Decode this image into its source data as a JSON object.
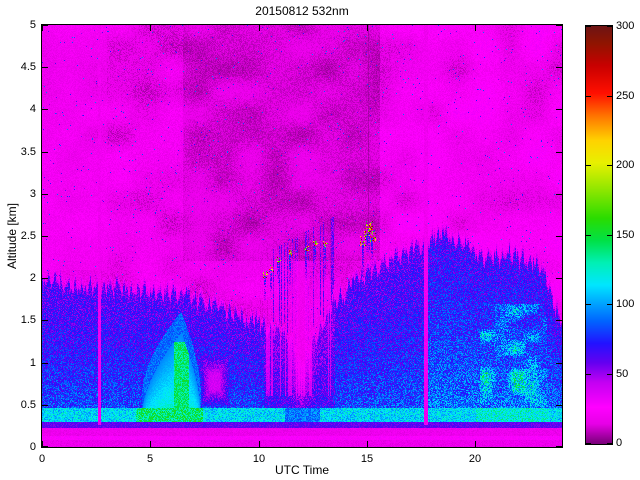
{
  "figure": {
    "title": "20150812 532nm",
    "x_axis_label": "UTC Time",
    "y_axis_label": "Altitude [km]",
    "background_color": "#FFFFFF",
    "axis_color": "#000000"
  },
  "chart_data": {
    "type": "heatmap",
    "title": "20150812 532nm",
    "xlabel": "UTC Time",
    "ylabel": "Altitude [km]",
    "x_range": [
      0,
      24
    ],
    "y_range": [
      0,
      5
    ],
    "x_ticks": [
      0,
      5,
      10,
      15,
      20
    ],
    "x_tick_labels": [
      "0",
      "5",
      "10",
      "15",
      "20"
    ],
    "y_ticks": [
      0,
      0.5,
      1,
      1.5,
      2,
      2.5,
      3,
      3.5,
      4,
      4.5,
      5
    ],
    "y_tick_labels": [
      "0",
      "0.5",
      "1",
      "1.5",
      "2",
      "2.5",
      "3",
      "3.5",
      "4",
      "4.5",
      "5"
    ],
    "grid": false,
    "colorbar": {
      "range": [
        0,
        300
      ],
      "ticks": [
        0,
        50,
        100,
        150,
        200,
        250,
        300
      ],
      "tick_labels": [
        "0",
        "50",
        "100",
        "150",
        "200",
        "250",
        "300"
      ],
      "colormap_stops": [
        [
          0,
          "#7A007A"
        ],
        [
          14,
          "#E600E6"
        ],
        [
          26,
          "#FF00FF"
        ],
        [
          44,
          "#C300F2"
        ],
        [
          58,
          "#6400F0"
        ],
        [
          72,
          "#2212FF"
        ],
        [
          88,
          "#0064FF"
        ],
        [
          102,
          "#00AAFF"
        ],
        [
          114,
          "#00E6FF"
        ],
        [
          130,
          "#00F0B4"
        ],
        [
          146,
          "#00E146"
        ],
        [
          162,
          "#2ADC00"
        ],
        [
          182,
          "#8CE600"
        ],
        [
          202,
          "#E8F000"
        ],
        [
          218,
          "#FFD200"
        ],
        [
          235,
          "#FF7800"
        ],
        [
          252,
          "#FF0F00"
        ],
        [
          272,
          "#C80000"
        ],
        [
          288,
          "#8F1400"
        ],
        [
          300,
          "#6E1414"
        ]
      ]
    },
    "features": {
      "data_gap_times_utc": [
        2.65,
        17.7
      ],
      "boundary_layer_top_km": [
        [
          0,
          2.05
        ],
        [
          2,
          2.0
        ],
        [
          4,
          1.95
        ],
        [
          6,
          1.9
        ],
        [
          7.5,
          1.8
        ],
        [
          9,
          1.65
        ],
        [
          10,
          1.55
        ],
        [
          10.8,
          1.45
        ],
        [
          11.5,
          1.3
        ],
        [
          12,
          1.1
        ],
        [
          12.8,
          1.45
        ],
        [
          13.5,
          1.8
        ],
        [
          14.5,
          2.05
        ],
        [
          15.5,
          2.2
        ],
        [
          16.5,
          2.35
        ],
        [
          17.5,
          2.45
        ],
        [
          18.5,
          2.6
        ],
        [
          19.5,
          2.45
        ],
        [
          20.5,
          2.3
        ],
        [
          21.5,
          2.35
        ],
        [
          22.5,
          2.3
        ],
        [
          23.2,
          2.1
        ],
        [
          23.6,
          1.8
        ],
        [
          24,
          1.5
        ]
      ],
      "surface_layer_km": [
        0.3,
        0.45
      ],
      "near_ground_band_km": [
        0,
        0.28
      ],
      "plume": {
        "time_utc": [
          4.6,
          7.3
        ],
        "peak_utc": 6.4,
        "top_km": 1.35
      },
      "purple_void": {
        "time_utc": [
          7.2,
          8.7
        ],
        "alt_km": [
          0.45,
          1.1
        ]
      },
      "attenuation_column": {
        "time_utc": [
          11.3,
          12.6
        ],
        "alt_km": [
          0.4,
          2.2
        ]
      },
      "dark_column_utc": 15.05,
      "cloud_specks": [
        [
          10.3,
          2.05
        ],
        [
          10.55,
          2.12
        ],
        [
          10.9,
          2.22
        ],
        [
          11.45,
          2.3
        ],
        [
          12.2,
          2.36
        ],
        [
          12.6,
          2.4
        ],
        [
          13.05,
          2.42
        ],
        [
          14.8,
          2.45
        ],
        [
          15.0,
          2.55
        ],
        [
          15.1,
          2.62
        ],
        [
          15.25,
          2.5
        ]
      ],
      "cyan_wisp_region": {
        "time_utc": [
          20.2,
          23.3
        ],
        "alt_km": [
          0.45,
          1.7
        ]
      }
    }
  }
}
